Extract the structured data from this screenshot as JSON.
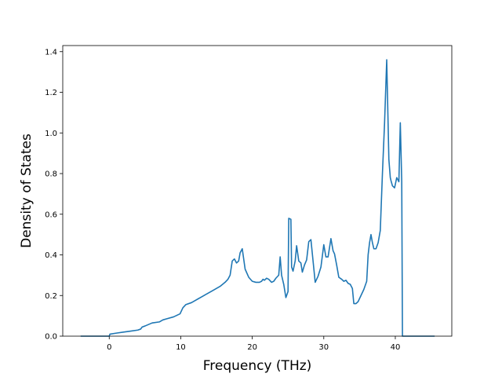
{
  "chart_data": {
    "type": "line",
    "title": "",
    "xlabel": "Frequency (THz)",
    "ylabel": "Density of States",
    "xlim": [
      -6.5,
      47.9
    ],
    "ylim": [
      0.0,
      1.43
    ],
    "xticks": [
      0,
      10,
      20,
      30,
      40
    ],
    "yticks": [
      0.0,
      0.2,
      0.4,
      0.6,
      0.8,
      1.0,
      1.2,
      1.4
    ],
    "xtick_labels": [
      "0",
      "10",
      "20",
      "30",
      "40"
    ],
    "ytick_labels": [
      "0.0",
      "0.2",
      "0.4",
      "0.6",
      "0.8",
      "1.0",
      "1.2",
      "1.4"
    ],
    "grid": false,
    "legend": "none",
    "series": [
      {
        "color": "#1f77b4",
        "x": [
          -4.0,
          0.0,
          0.1,
          1.0,
          2.0,
          3.0,
          4.0,
          4.4,
          4.6,
          5.0,
          6.0,
          7.0,
          7.5,
          8.0,
          9.0,
          9.9,
          10.3,
          10.7,
          11.5,
          12.5,
          13.0,
          13.5,
          14.5,
          15.5,
          16.2,
          16.6,
          16.9,
          17.2,
          17.5,
          17.8,
          18.1,
          18.3,
          18.6,
          19.0,
          19.5,
          20.0,
          20.5,
          21.0,
          21.3,
          21.5,
          21.7,
          22.0,
          22.3,
          22.7,
          23.0,
          23.3,
          23.7,
          23.9,
          24.1,
          24.4,
          24.7,
          25.0,
          25.1,
          25.4,
          25.5,
          25.7,
          26.0,
          26.2,
          26.5,
          26.8,
          27.0,
          27.3,
          27.6,
          27.9,
          28.2,
          28.5,
          28.8,
          29.2,
          29.6,
          30.0,
          30.3,
          30.6,
          31.0,
          31.3,
          31.5,
          31.8,
          32.1,
          32.5,
          32.8,
          33.1,
          33.4,
          33.7,
          34.0,
          34.2,
          34.5,
          34.8,
          35.2,
          35.6,
          36.0,
          36.2,
          36.4,
          36.6,
          36.8,
          37.0,
          37.3,
          37.6,
          37.9,
          38.2,
          38.5,
          38.8,
          39.1,
          39.3,
          39.4,
          39.6,
          39.9,
          40.2,
          40.5,
          40.7,
          40.9,
          41.0,
          41.1,
          41.3,
          41.5,
          41.7,
          42.0,
          45.5
        ],
        "values": [
          0.0,
          0.0,
          0.01,
          0.015,
          0.02,
          0.025,
          0.03,
          0.035,
          0.045,
          0.05,
          0.065,
          0.07,
          0.08,
          0.085,
          0.095,
          0.11,
          0.14,
          0.155,
          0.165,
          0.185,
          0.195,
          0.205,
          0.225,
          0.245,
          0.265,
          0.28,
          0.3,
          0.37,
          0.38,
          0.36,
          0.37,
          0.41,
          0.43,
          0.33,
          0.29,
          0.27,
          0.265,
          0.265,
          0.27,
          0.28,
          0.275,
          0.285,
          0.28,
          0.265,
          0.27,
          0.285,
          0.3,
          0.39,
          0.3,
          0.255,
          0.19,
          0.22,
          0.58,
          0.575,
          0.34,
          0.32,
          0.37,
          0.445,
          0.37,
          0.36,
          0.315,
          0.35,
          0.375,
          0.465,
          0.475,
          0.37,
          0.265,
          0.295,
          0.34,
          0.45,
          0.39,
          0.39,
          0.48,
          0.42,
          0.405,
          0.35,
          0.29,
          0.28,
          0.27,
          0.275,
          0.26,
          0.255,
          0.235,
          0.16,
          0.16,
          0.17,
          0.2,
          0.23,
          0.27,
          0.4,
          0.46,
          0.5,
          0.46,
          0.43,
          0.43,
          0.46,
          0.52,
          0.8,
          1.05,
          1.36,
          0.87,
          0.78,
          0.765,
          0.74,
          0.73,
          0.78,
          0.76,
          1.05,
          0.76,
          0.0,
          0.0,
          0.0,
          0.0,
          0.0,
          0.0,
          0.0
        ]
      }
    ]
  }
}
